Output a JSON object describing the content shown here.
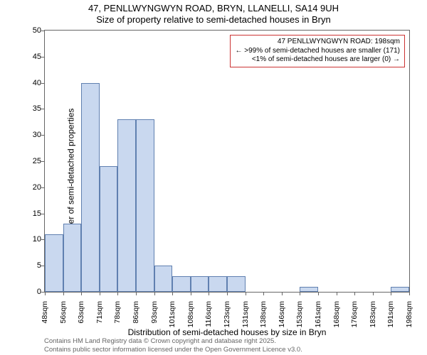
{
  "chart": {
    "type": "histogram",
    "title_main": "47, PENLLWYNGWYN ROAD, BRYN, LLANELLI, SA14 9UH",
    "title_sub": "Size of property relative to semi-detached houses in Bryn",
    "ylabel": "Number of semi-detached properties",
    "xlabel": "Distribution of semi-detached houses by size in Bryn",
    "ylim": [
      0,
      50
    ],
    "ytick_step": 5,
    "yticks": [
      0,
      5,
      10,
      15,
      20,
      25,
      30,
      35,
      40,
      45,
      50
    ],
    "xticks": [
      "48sqm",
      "56sqm",
      "63sqm",
      "71sqm",
      "78sqm",
      "86sqm",
      "93sqm",
      "101sqm",
      "108sqm",
      "116sqm",
      "123sqm",
      "131sqm",
      "138sqm",
      "146sqm",
      "153sqm",
      "161sqm",
      "168sqm",
      "176sqm",
      "183sqm",
      "191sqm",
      "198sqm"
    ],
    "bars": [
      {
        "value": 11
      },
      {
        "value": 13
      },
      {
        "value": 40
      },
      {
        "value": 24
      },
      {
        "value": 33
      },
      {
        "value": 33
      },
      {
        "value": 5
      },
      {
        "value": 3
      },
      {
        "value": 3
      },
      {
        "value": 3
      },
      {
        "value": 3
      },
      {
        "value": 0
      },
      {
        "value": 0
      },
      {
        "value": 0
      },
      {
        "value": 1
      },
      {
        "value": 0
      },
      {
        "value": 0
      },
      {
        "value": 0
      },
      {
        "value": 0
      },
      {
        "value": 1
      }
    ],
    "bar_fill": "#c9d8ef",
    "bar_border": "#6080b0",
    "axis_color": "#666666",
    "background_color": "#ffffff",
    "title_fontsize": 13,
    "label_fontsize": 12,
    "tick_fontsize": 11,
    "callout": {
      "line1": "47 PENLLWYNGWYN ROAD: 198sqm",
      "line2": "← >99% of semi-detached houses are smaller (171)",
      "line3": "<1% of semi-detached houses are larger (0) →",
      "border_color": "#cc3333",
      "fontsize": 10
    },
    "footer_line1": "Contains HM Land Registry data © Crown copyright and database right 2025.",
    "footer_line2": "Contains public sector information licensed under the Open Government Licence v3.0."
  }
}
